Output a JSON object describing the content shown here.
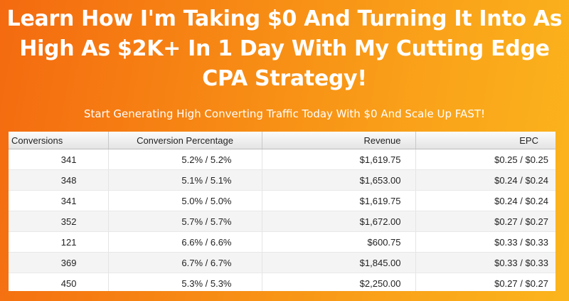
{
  "headline": {
    "line1": "Learn How I'm Taking $0 And Turning It Into As",
    "line2": "High As $2K+ In 1 Day With My Cutting Edge",
    "line3": "CPA Strategy!"
  },
  "subheadline": "Start Generating High Converting Traffic Today With $0 And Scale Up FAST!",
  "stats_table": {
    "columns": [
      "Conversions",
      "Conversion Percentage",
      "Revenue",
      "EPC"
    ],
    "rows": [
      [
        "341",
        "5.2% / 5.2%",
        "$1,619.75",
        "$0.25 / $0.25"
      ],
      [
        "348",
        "5.1% / 5.1%",
        "$1,653.00",
        "$0.24 / $0.24"
      ],
      [
        "341",
        "5.0% / 5.0%",
        "$1,619.75",
        "$0.24 / $0.24"
      ],
      [
        "352",
        "5.7% / 5.7%",
        "$1,672.00",
        "$0.27 / $0.27"
      ],
      [
        "121",
        "6.6% / 6.6%",
        "$600.75",
        "$0.33 / $0.33"
      ],
      [
        "369",
        "6.7% / 6.7%",
        "$1,845.00",
        "$0.33 / $0.33"
      ],
      [
        "450",
        "5.3% / 5.3%",
        "$2,250.00",
        "$0.27 / $0.27"
      ]
    ]
  },
  "colors": {
    "background_start": "#f46a10",
    "background_end": "#fbb51c",
    "text_light": "#ffffff"
  }
}
